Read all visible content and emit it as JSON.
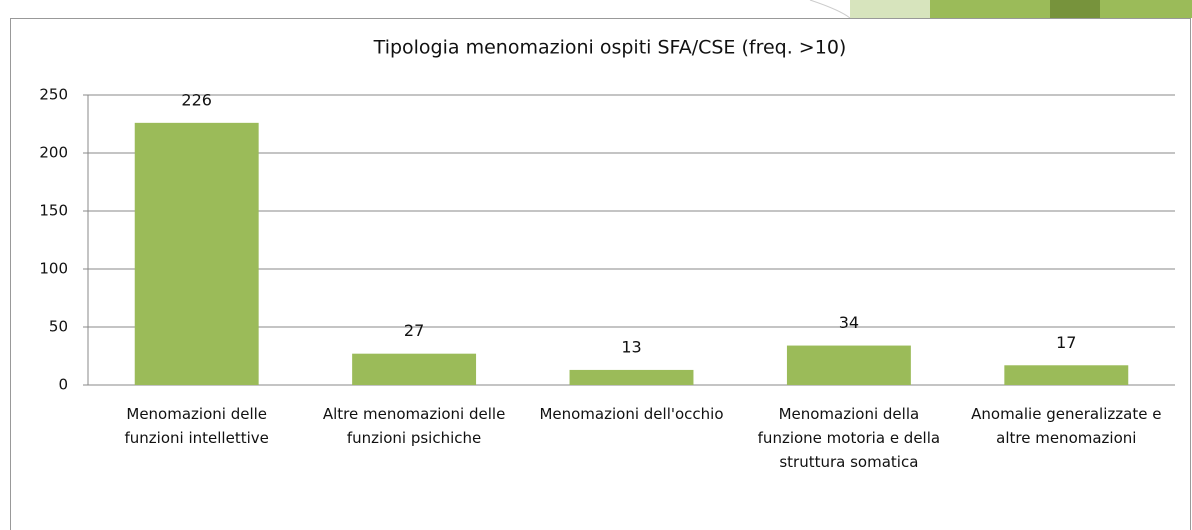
{
  "chart_data": {
    "type": "bar",
    "title": "Tipologia menomazioni ospiti SFA/CSE (freq. >10)",
    "categories": [
      "Menomazioni delle funzioni intellettive",
      "Altre menomazioni delle funzioni psichiche",
      "Menomazioni dell'occhio",
      "Menomazioni della funzione motoria e della struttura somatica",
      "Anomalie generalizzate e altre menomazioni"
    ],
    "values": [
      226,
      27,
      13,
      34,
      17
    ],
    "color": "#9bbb59",
    "ylim": [
      0,
      250
    ],
    "yticks": [
      0,
      50,
      100,
      150,
      200,
      250
    ],
    "grid": true
  }
}
